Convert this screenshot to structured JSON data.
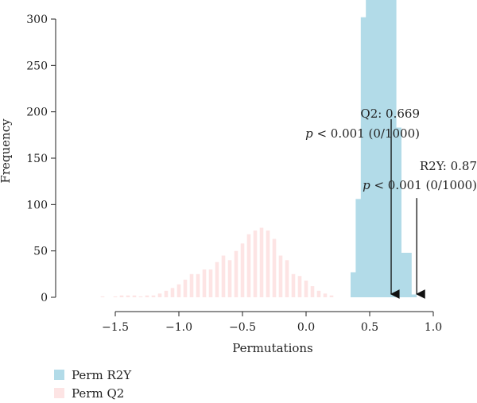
{
  "chart_data": {
    "type": "bar",
    "xlabel": "Permutations",
    "ylabel": "Frequency",
    "xlim": [
      -1.7,
      1.0
    ],
    "ylim": [
      0,
      320
    ],
    "x_ticks": [
      -1.5,
      -1.0,
      -0.5,
      0.0,
      0.5,
      1.0
    ],
    "x_tick_labels": [
      "−1.5",
      "−1.0",
      "−0.5",
      "0.0",
      "0.5",
      "1.0"
    ],
    "y_ticks": [
      0,
      50,
      100,
      150,
      200,
      250,
      300
    ],
    "y_tick_labels": [
      "0",
      "50",
      "100",
      "150",
      "200",
      "250",
      "300"
    ],
    "bin_width": 0.035,
    "series": [
      {
        "name": "Perm Q2",
        "color": "#fde4e4",
        "x": [
          -1.6,
          -1.5,
          -1.45,
          -1.4,
          -1.35,
          -1.3,
          -1.25,
          -1.2,
          -1.15,
          -1.1,
          -1.05,
          -1.0,
          -0.95,
          -0.9,
          -0.85,
          -0.8,
          -0.75,
          -0.7,
          -0.65,
          -0.6,
          -0.55,
          -0.5,
          -0.45,
          -0.4,
          -0.35,
          -0.3,
          -0.25,
          -0.2,
          -0.15,
          -0.1,
          -0.05,
          0.0,
          0.05,
          0.1,
          0.15,
          0.2
        ],
        "values": [
          1,
          1,
          2,
          2,
          2,
          1,
          2,
          2,
          4,
          7,
          10,
          14,
          19,
          25,
          25,
          30,
          30,
          38,
          45,
          40,
          50,
          58,
          68,
          72,
          75,
          72,
          63,
          45,
          40,
          25,
          23,
          18,
          12,
          7,
          4,
          2
        ]
      },
      {
        "name": "Perm R2Y",
        "color": "#b2dbe8",
        "x": [
          0.47,
          0.51,
          0.55,
          0.59,
          0.63,
          0.67,
          0.71,
          0.75
        ],
        "values": [
          27,
          106,
          302,
          325,
          183,
          25,
          48,
          3
        ]
      }
    ],
    "annotations": [
      {
        "line1_label": "Q2: ",
        "line1_value": "0.669",
        "line2_p": "p",
        "line2_rest": " < 0.001 (0/1000)",
        "x": 0.669,
        "y_top": 192
      },
      {
        "line1_label": "R2Y: ",
        "line1_value": "0.87",
        "line2_p": "p",
        "line2_rest": " < 0.001 (0/1000)",
        "x": 0.87,
        "y_top": 107
      }
    ],
    "legend": {
      "placement": "bottom-left"
    }
  }
}
